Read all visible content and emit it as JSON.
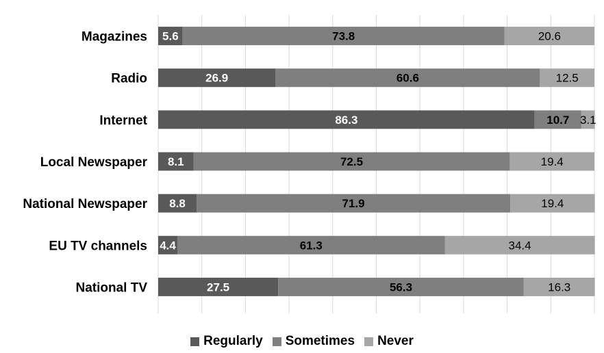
{
  "chart_data": {
    "type": "bar",
    "orientation": "horizontal",
    "stacked": true,
    "categories": [
      "Magazines",
      "Radio",
      "Internet",
      "Local Newspaper",
      "National Newspaper",
      "EU TV channels",
      "National TV"
    ],
    "series": [
      {
        "name": "Regularly",
        "color": "#595959",
        "label_color": "#ffffff",
        "values": [
          5.6,
          26.9,
          86.3,
          8.1,
          8.8,
          4.4,
          27.5
        ]
      },
      {
        "name": "Sometimes",
        "color": "#7f7f7f",
        "label_color": "#000000",
        "values": [
          73.8,
          60.6,
          10.7,
          72.5,
          71.9,
          61.3,
          56.3
        ]
      },
      {
        "name": "Never",
        "color": "#a6a6a6",
        "label_color": "#000000",
        "values": [
          20.6,
          12.5,
          3.1,
          19.4,
          19.4,
          34.4,
          16.3
        ]
      }
    ],
    "title": "",
    "xlabel": "",
    "ylabel": "",
    "xlim": [
      0,
      100
    ],
    "grid": true,
    "legend": "bottom"
  }
}
